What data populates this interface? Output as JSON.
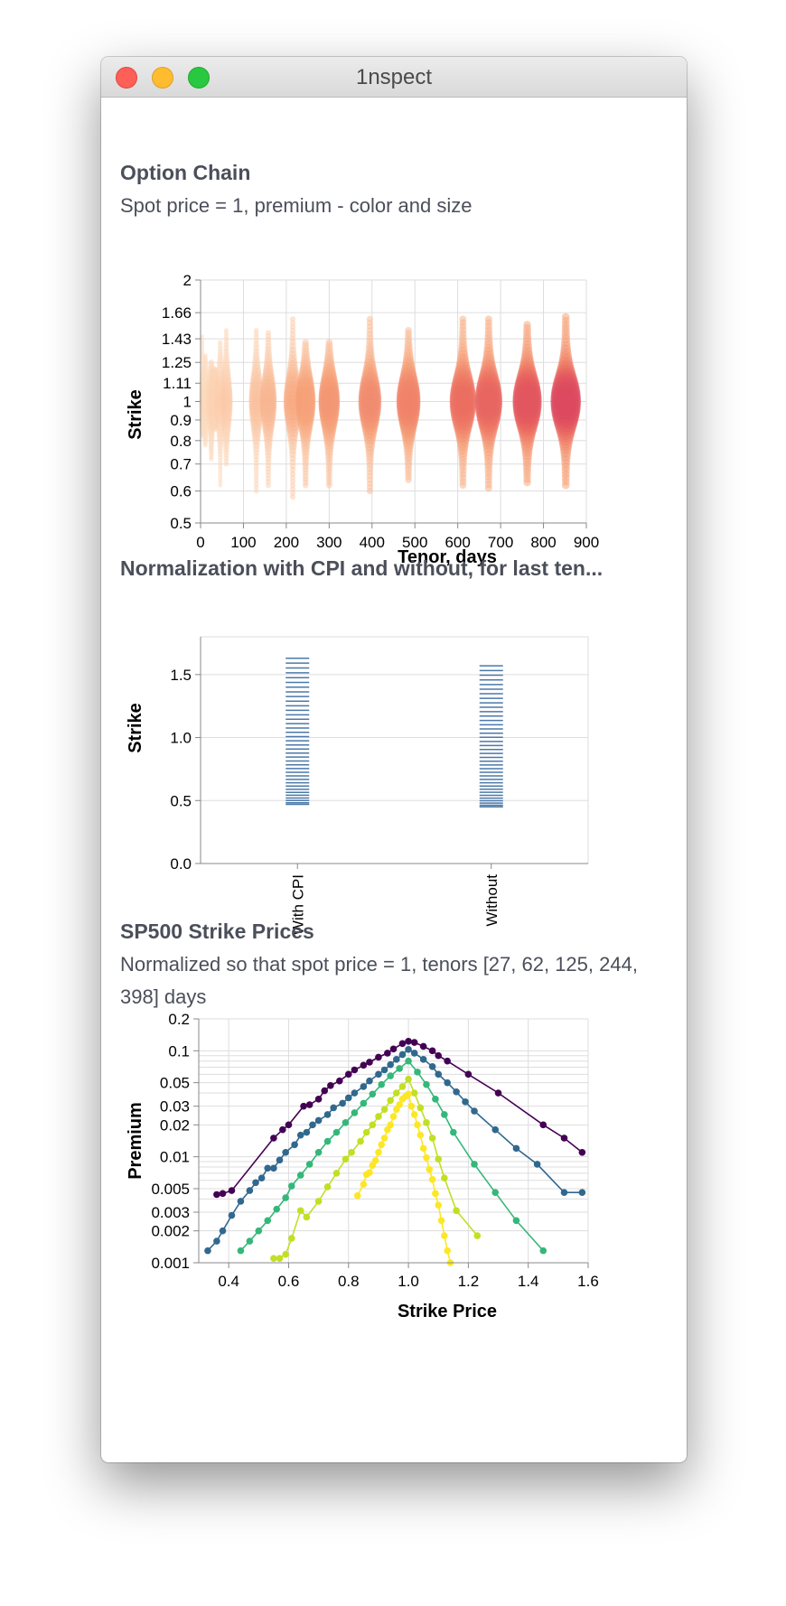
{
  "window": {
    "title": "1nspect"
  },
  "chart1": {
    "title": "Option Chain",
    "subtitle": "Spot price = 1, premium - color and size"
  },
  "chart2": {
    "title": "Normalization with CPI and without, for last ten..."
  },
  "chart3": {
    "title": "SP500 Strike Prices",
    "subtitle": "Normalized so that spot price = 1, tenors [27, 62, 125, 244, 398] days"
  },
  "chart_data": [
    {
      "type": "scatter",
      "title": "Option Chain",
      "subtitle": "Spot price = 1, premium - color and size",
      "xlabel": "Tenor, days",
      "ylabel": "Strike",
      "xlim": [
        0,
        900
      ],
      "ylim": [
        0.5,
        2
      ],
      "y_scale": "log",
      "x_ticks": [
        "0",
        "100",
        "200",
        "300",
        "400",
        "500",
        "600",
        "700",
        "800",
        "900"
      ],
      "y_ticks": [
        "0.5",
        "0.6",
        "0.7",
        "0.8",
        "0.9",
        "1",
        "1.11",
        "1.25",
        "1.43",
        "1.66",
        "2"
      ],
      "grid": true,
      "tenors": [
        {
          "tenor": 4,
          "min": 0.82,
          "max": 1.45,
          "premium": 0.02
        },
        {
          "tenor": 11,
          "min": 0.78,
          "max": 1.3,
          "premium": 0.04
        },
        {
          "tenor": 25,
          "min": 0.72,
          "max": 1.25,
          "premium": 0.07
        },
        {
          "tenor": 32,
          "min": 0.86,
          "max": 1.2,
          "premium": 0.08
        },
        {
          "tenor": 46,
          "min": 0.62,
          "max": 1.4,
          "premium": 0.1
        },
        {
          "tenor": 60,
          "min": 0.7,
          "max": 1.5,
          "premium": 0.12
        },
        {
          "tenor": 130,
          "min": 0.6,
          "max": 1.5,
          "premium": 0.18
        },
        {
          "tenor": 158,
          "min": 0.62,
          "max": 1.48,
          "premium": 0.24
        },
        {
          "tenor": 215,
          "min": 0.58,
          "max": 1.6,
          "premium": 0.3
        },
        {
          "tenor": 245,
          "min": 0.62,
          "max": 1.4,
          "premium": 0.36
        },
        {
          "tenor": 300,
          "min": 0.62,
          "max": 1.4,
          "premium": 0.42
        },
        {
          "tenor": 395,
          "min": 0.6,
          "max": 1.6,
          "premium": 0.5
        },
        {
          "tenor": 485,
          "min": 0.64,
          "max": 1.5,
          "premium": 0.55
        },
        {
          "tenor": 612,
          "min": 0.62,
          "max": 1.6,
          "premium": 0.68
        },
        {
          "tenor": 672,
          "min": 0.61,
          "max": 1.6,
          "premium": 0.74
        },
        {
          "tenor": 762,
          "min": 0.63,
          "max": 1.55,
          "premium": 0.84
        },
        {
          "tenor": 852,
          "min": 0.62,
          "max": 1.62,
          "premium": 0.92
        }
      ]
    },
    {
      "type": "scatter",
      "title": "Normalization with CPI and without, for last ten...",
      "xlabel": "",
      "ylabel": "Strike",
      "categories": [
        "With CPI",
        "Without"
      ],
      "ylim": [
        0,
        1.8
      ],
      "y_ticks": [
        "0.0",
        "0.5",
        "1.0",
        "1.5"
      ],
      "grid": true,
      "series": [
        {
          "name": "With CPI",
          "min": 0.47,
          "max": 1.63
        },
        {
          "name": "Without",
          "min": 0.45,
          "max": 1.57
        }
      ]
    },
    {
      "type": "line",
      "title": "SP500 Strike Prices",
      "subtitle": "Normalized so that spot price = 1, tenors [27, 62, 125, 244, 398] days",
      "xlabel": "Strike Price",
      "ylabel": "Premium",
      "xlim": [
        0.3,
        1.6
      ],
      "ylim": [
        0.001,
        0.2
      ],
      "y_scale": "log",
      "x_ticks": [
        "0.4",
        "0.6",
        "0.8",
        "1.0",
        "1.2",
        "1.4",
        "1.6"
      ],
      "y_ticks": [
        "0.001",
        "0.002",
        "0.003",
        "0.005",
        "0.01",
        "0.02",
        "0.03",
        "0.05",
        "0.1",
        "0.2"
      ],
      "grid": true,
      "series": [
        {
          "tenor": 398,
          "color": "#440154",
          "x": [
            0.36,
            0.38,
            0.41,
            0.55,
            0.58,
            0.6,
            0.65,
            0.67,
            0.7,
            0.72,
            0.74,
            0.77,
            0.8,
            0.82,
            0.85,
            0.87,
            0.9,
            0.93,
            0.95,
            0.98,
            1.0,
            1.02,
            1.05,
            1.08,
            1.1,
            1.13,
            1.2,
            1.3,
            1.45,
            1.52,
            1.58
          ],
          "y": [
            0.0044,
            0.0045,
            0.0048,
            0.015,
            0.018,
            0.02,
            0.03,
            0.031,
            0.035,
            0.042,
            0.047,
            0.052,
            0.06,
            0.066,
            0.073,
            0.078,
            0.087,
            0.095,
            0.104,
            0.117,
            0.123,
            0.12,
            0.11,
            0.1,
            0.09,
            0.08,
            0.06,
            0.04,
            0.02,
            0.015,
            0.011
          ]
        },
        {
          "tenor": 244,
          "color": "#31688e",
          "x": [
            0.33,
            0.36,
            0.38,
            0.41,
            0.44,
            0.47,
            0.49,
            0.51,
            0.53,
            0.55,
            0.57,
            0.59,
            0.62,
            0.64,
            0.66,
            0.68,
            0.7,
            0.73,
            0.75,
            0.78,
            0.8,
            0.82,
            0.85,
            0.87,
            0.9,
            0.92,
            0.94,
            0.96,
            0.98,
            1.0,
            1.02,
            1.05,
            1.08,
            1.1,
            1.13,
            1.16,
            1.19,
            1.22,
            1.29,
            1.36,
            1.43,
            1.52,
            1.58
          ],
          "y": [
            0.0013,
            0.0016,
            0.002,
            0.0028,
            0.0038,
            0.0048,
            0.0057,
            0.0063,
            0.0078,
            0.0078,
            0.0093,
            0.011,
            0.013,
            0.016,
            0.017,
            0.02,
            0.022,
            0.025,
            0.029,
            0.032,
            0.036,
            0.04,
            0.046,
            0.052,
            0.06,
            0.066,
            0.074,
            0.083,
            0.092,
            0.103,
            0.095,
            0.083,
            0.071,
            0.06,
            0.05,
            0.041,
            0.033,
            0.027,
            0.018,
            0.012,
            0.0085,
            0.0046,
            0.0046
          ]
        },
        {
          "tenor": 125,
          "color": "#35b779",
          "x": [
            0.44,
            0.47,
            0.5,
            0.53,
            0.56,
            0.59,
            0.61,
            0.64,
            0.67,
            0.7,
            0.73,
            0.76,
            0.79,
            0.82,
            0.85,
            0.88,
            0.91,
            0.94,
            0.97,
            1.0,
            1.03,
            1.06,
            1.09,
            1.12,
            1.15,
            1.22,
            1.29,
            1.36,
            1.45
          ],
          "y": [
            0.0013,
            0.0016,
            0.002,
            0.0025,
            0.0032,
            0.0041,
            0.0053,
            0.0067,
            0.0085,
            0.011,
            0.014,
            0.017,
            0.021,
            0.026,
            0.032,
            0.039,
            0.048,
            0.058,
            0.068,
            0.08,
            0.063,
            0.048,
            0.035,
            0.025,
            0.017,
            0.0085,
            0.0046,
            0.0025,
            0.0013
          ]
        },
        {
          "tenor": 62,
          "color": "#c2df23",
          "x": [
            0.55,
            0.57,
            0.59,
            0.61,
            0.64,
            0.66,
            0.7,
            0.73,
            0.76,
            0.79,
            0.81,
            0.84,
            0.86,
            0.88,
            0.9,
            0.92,
            0.94,
            0.96,
            0.98,
            1.0,
            1.02,
            1.04,
            1.06,
            1.08,
            1.1,
            1.12,
            1.16,
            1.23
          ],
          "y": [
            0.0011,
            0.0011,
            0.0012,
            0.0017,
            0.0031,
            0.0027,
            0.0038,
            0.0052,
            0.007,
            0.0095,
            0.011,
            0.014,
            0.017,
            0.02,
            0.024,
            0.028,
            0.034,
            0.04,
            0.046,
            0.054,
            0.04,
            0.029,
            0.021,
            0.015,
            0.0095,
            0.0063,
            0.0031,
            0.0018
          ]
        },
        {
          "tenor": 27,
          "color": "#fde725",
          "x": [
            0.83,
            0.85,
            0.86,
            0.87,
            0.88,
            0.89,
            0.9,
            0.91,
            0.92,
            0.93,
            0.94,
            0.95,
            0.96,
            0.97,
            0.98,
            0.99,
            1.0,
            1.01,
            1.02,
            1.03,
            1.04,
            1.05,
            1.06,
            1.07,
            1.08,
            1.09,
            1.1,
            1.11,
            1.12,
            1.13,
            1.14
          ],
          "y": [
            0.0043,
            0.0055,
            0.0068,
            0.0071,
            0.0083,
            0.0092,
            0.011,
            0.013,
            0.015,
            0.018,
            0.02,
            0.024,
            0.028,
            0.031,
            0.035,
            0.037,
            0.039,
            0.03,
            0.025,
            0.02,
            0.016,
            0.012,
            0.0098,
            0.0076,
            0.0061,
            0.0045,
            0.0035,
            0.0025,
            0.0018,
            0.0013,
            0.001
          ]
        }
      ]
    }
  ]
}
